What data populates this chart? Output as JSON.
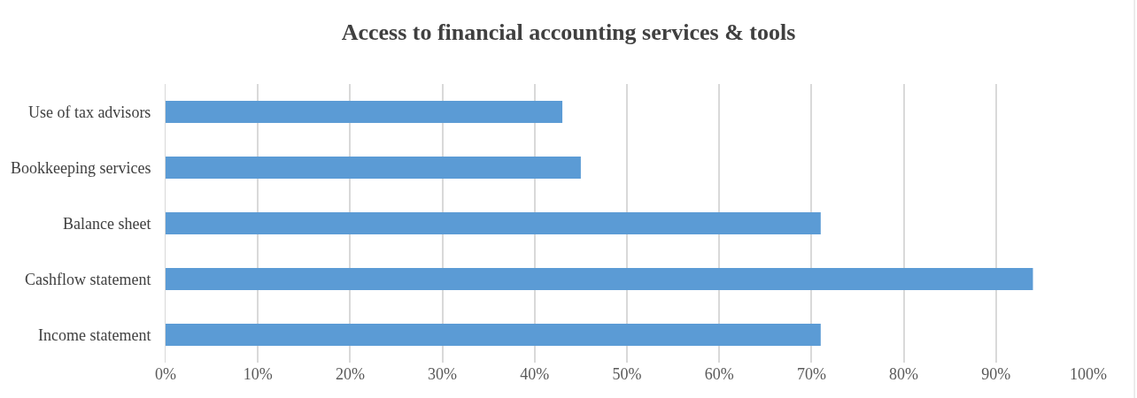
{
  "chart_data": {
    "type": "bar",
    "orientation": "horizontal",
    "title": "Access to financial accounting services & tools",
    "categories": [
      "Use of tax advisors",
      "Bookkeeping services",
      "Balance sheet",
      "Cashflow statement",
      "Income statement"
    ],
    "values": [
      43,
      45,
      71,
      94,
      71
    ],
    "color": "#5b9bd5",
    "xlim": [
      0,
      100
    ],
    "xticks": [
      {
        "value": 0,
        "label": "0%"
      },
      {
        "value": 10,
        "label": "10%"
      },
      {
        "value": 20,
        "label": "20%"
      },
      {
        "value": 30,
        "label": "30%"
      },
      {
        "value": 40,
        "label": "40%"
      },
      {
        "value": 50,
        "label": "50%"
      },
      {
        "value": 60,
        "label": "60%"
      },
      {
        "value": 70,
        "label": "70%"
      },
      {
        "value": 80,
        "label": "80%"
      },
      {
        "value": 90,
        "label": "90%"
      },
      {
        "value": 100,
        "label": "100%"
      }
    ],
    "grid": "x",
    "legend": false
  }
}
